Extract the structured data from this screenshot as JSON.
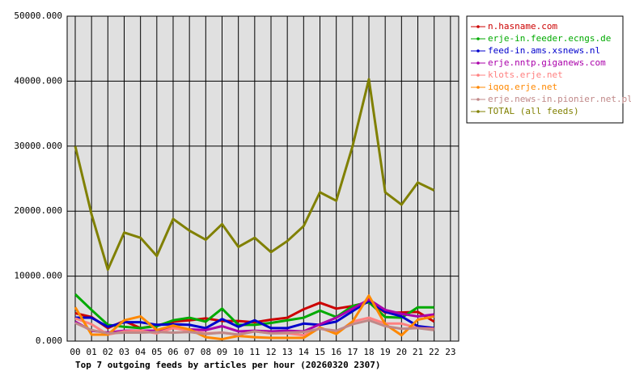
{
  "chart_data": {
    "type": "line",
    "title": "Top 7 outgoing feeds by articles per hour (20260320 2307)",
    "categories": [
      "00",
      "01",
      "02",
      "03",
      "04",
      "05",
      "06",
      "07",
      "08",
      "09",
      "10",
      "11",
      "12",
      "13",
      "14",
      "15",
      "16",
      "17",
      "18",
      "19",
      "20",
      "21",
      "22",
      "23"
    ],
    "ylim": [
      0,
      50000
    ],
    "yticks": [
      {
        "value": 0,
        "label": "0.000"
      },
      {
        "value": 10000,
        "label": "10000.000"
      },
      {
        "value": 20000,
        "label": "20000.000"
      },
      {
        "value": 30000,
        "label": "30000.000"
      },
      {
        "value": 40000,
        "label": "40000.000"
      },
      {
        "value": 50000,
        "label": "50000.000"
      }
    ],
    "grid": true,
    "legend": "right",
    "series": [
      {
        "name": "n.hasname.com",
        "color": "#cc0000",
        "values": [
          4300,
          3700,
          2000,
          3100,
          2000,
          2400,
          3000,
          3200,
          3500,
          3100,
          3100,
          2900,
          3300,
          3600,
          4900,
          5900,
          5000,
          5400,
          6000,
          4400,
          4400,
          4500,
          3000,
          null
        ]
      },
      {
        "name": "erje-in.feeder.ecngs.de",
        "color": "#00aa00",
        "values": [
          7200,
          4800,
          2500,
          2200,
          2000,
          2300,
          3200,
          3600,
          3000,
          5000,
          2500,
          2500,
          2800,
          3200,
          3600,
          4700,
          3700,
          5400,
          6000,
          3700,
          3600,
          5200,
          5200,
          null
        ]
      },
      {
        "name": "feed-in.ams.xsnews.nl",
        "color": "#0000cc",
        "values": [
          3600,
          3600,
          2200,
          2900,
          2900,
          2500,
          2600,
          2500,
          2000,
          3400,
          2200,
          3200,
          2000,
          2000,
          2700,
          2500,
          3000,
          4600,
          6200,
          4500,
          3800,
          2300,
          2000,
          null
        ]
      },
      {
        "name": "erje.nntp.giganews.com",
        "color": "#aa00aa",
        "values": [
          3000,
          1600,
          1300,
          1600,
          1600,
          1600,
          2000,
          1800,
          1700,
          2300,
          1500,
          1600,
          1500,
          1600,
          1500,
          2600,
          3600,
          5000,
          6400,
          4800,
          4200,
          3800,
          4100,
          null
        ]
      },
      {
        "name": "klots.erje.net",
        "color": "#ff8080",
        "values": [
          3500,
          2600,
          1000,
          1500,
          1600,
          1200,
          2000,
          1600,
          1200,
          1300,
          1000,
          1500,
          1200,
          1200,
          900,
          2000,
          1200,
          3000,
          3600,
          2700,
          2700,
          2000,
          1900,
          null
        ]
      },
      {
        "name": "iqoq.erje.net",
        "color": "#ff8800",
        "values": [
          5200,
          1000,
          1000,
          3200,
          3800,
          1700,
          2400,
          1800,
          600,
          300,
          800,
          600,
          500,
          500,
          500,
          2100,
          1100,
          3000,
          7000,
          2600,
          900,
          3300,
          3800,
          null
        ]
      },
      {
        "name": "erje.news-in.pionier.net.pl",
        "color": "#c08888",
        "values": [
          2800,
          1700,
          1200,
          1300,
          1300,
          1400,
          1300,
          1400,
          1100,
          1300,
          1000,
          1500,
          1200,
          1300,
          1400,
          1900,
          1600,
          2600,
          3200,
          2300,
          1900,
          2000,
          1700,
          null
        ]
      },
      {
        "name": "TOTAL (all feeds)",
        "color": "#808000",
        "values": [
          30000,
          19500,
          11000,
          16700,
          15900,
          13100,
          18800,
          17000,
          15600,
          18000,
          14500,
          15900,
          13700,
          15400,
          17700,
          22900,
          21600,
          30000,
          40300,
          22900,
          21000,
          24400,
          23200,
          null
        ]
      }
    ]
  }
}
